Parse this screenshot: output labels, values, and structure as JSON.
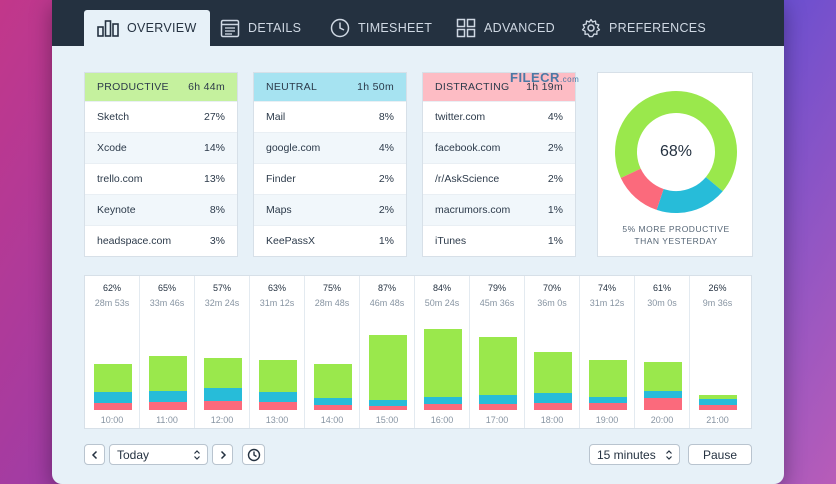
{
  "tabs": [
    {
      "label": "OVERVIEW",
      "icon": "bar-chart-icon",
      "active": true
    },
    {
      "label": "DETAILS",
      "icon": "calendar-list-icon"
    },
    {
      "label": "TIMESHEET",
      "icon": "clock-icon"
    },
    {
      "label": "ADVANCED",
      "icon": "grid-icon"
    },
    {
      "label": "PREFERENCES",
      "icon": "gear-icon"
    }
  ],
  "categories": [
    {
      "title": "PRODUCTIVE",
      "total": "6h 44m",
      "color": "#c5f19e",
      "items": [
        {
          "name": "Sketch",
          "pct": "27%"
        },
        {
          "name": "Xcode",
          "pct": "14%"
        },
        {
          "name": "trello.com",
          "pct": "13%"
        },
        {
          "name": "Keynote",
          "pct": "8%"
        },
        {
          "name": "headspace.com",
          "pct": "3%"
        }
      ]
    },
    {
      "title": "NEUTRAL",
      "total": "1h 50m",
      "color": "#a6e3f1",
      "items": [
        {
          "name": "Mail",
          "pct": "8%"
        },
        {
          "name": "google.com",
          "pct": "4%"
        },
        {
          "name": "Finder",
          "pct": "2%"
        },
        {
          "name": "Maps",
          "pct": "2%"
        },
        {
          "name": "KeePassX",
          "pct": "1%"
        }
      ]
    },
    {
      "title": "DISTRACTING",
      "total": "1h 19m",
      "color": "#fdbcc4",
      "items": [
        {
          "name": "twitter.com",
          "pct": "4%"
        },
        {
          "name": "facebook.com",
          "pct": "2%"
        },
        {
          "name": "/r/AskScience",
          "pct": "2%"
        },
        {
          "name": "macrumors.com",
          "pct": "1%"
        },
        {
          "name": "iTunes",
          "pct": "1%"
        }
      ]
    }
  ],
  "watermark": {
    "text": "FILECR",
    "suffix": ".com"
  },
  "donut": {
    "center_label": "68%",
    "caption_line1": "5% MORE PRODUCTIVE",
    "caption_line2": "THAN YESTERDAY",
    "segments": [
      {
        "category": "productive",
        "fraction": 0.68,
        "color": "#9ae84c"
      },
      {
        "category": "neutral",
        "fraction": 0.19,
        "color": "#27bcd9"
      },
      {
        "category": "distracting",
        "fraction": 0.13,
        "color": "#fb6a7c"
      }
    ]
  },
  "chart_data": {
    "type": "bar",
    "categories": [
      "10:00",
      "11:00",
      "12:00",
      "13:00",
      "14:00",
      "15:00",
      "16:00",
      "17:00",
      "18:00",
      "19:00",
      "20:00",
      "21:00"
    ],
    "productive_pct": [
      "62%",
      "65%",
      "57%",
      "63%",
      "75%",
      "87%",
      "84%",
      "79%",
      "70%",
      "74%",
      "61%",
      "26%"
    ],
    "durations": [
      "28m 53s",
      "33m 46s",
      "32m 24s",
      "31m 12s",
      "28m 48s",
      "46m 48s",
      "50m 24s",
      "45m 36s",
      "36m 0s",
      "31m 12s",
      "30m 0s",
      "9m 36s"
    ],
    "series": [
      {
        "name": "productive",
        "color": "#9ae84c",
        "values": [
          17.9,
          22.0,
          18.5,
          19.7,
          21.6,
          40.7,
          42.3,
          36.0,
          25.2,
          23.1,
          18.3,
          2.5
        ]
      },
      {
        "name": "neutral",
        "color": "#27bcd9",
        "values": [
          6.5,
          6.8,
          8.4,
          6.6,
          3.9,
          3.4,
          4.3,
          5.6,
          6.5,
          3.9,
          4.4,
          3.8
        ]
      },
      {
        "name": "distracting",
        "color": "#fb6a7c",
        "values": [
          4.5,
          5.0,
          5.5,
          4.9,
          3.3,
          2.7,
          3.8,
          4.0,
          4.3,
          4.2,
          7.3,
          3.3
        ]
      }
    ],
    "ylim": [
      0,
      60
    ]
  },
  "controls": {
    "date_value": "Today",
    "interval_value": "15 minutes",
    "pause_label": "Pause",
    "prev_icon": "chevron-left-icon",
    "next_icon": "chevron-right-icon",
    "history_icon": "clock-history-icon"
  }
}
